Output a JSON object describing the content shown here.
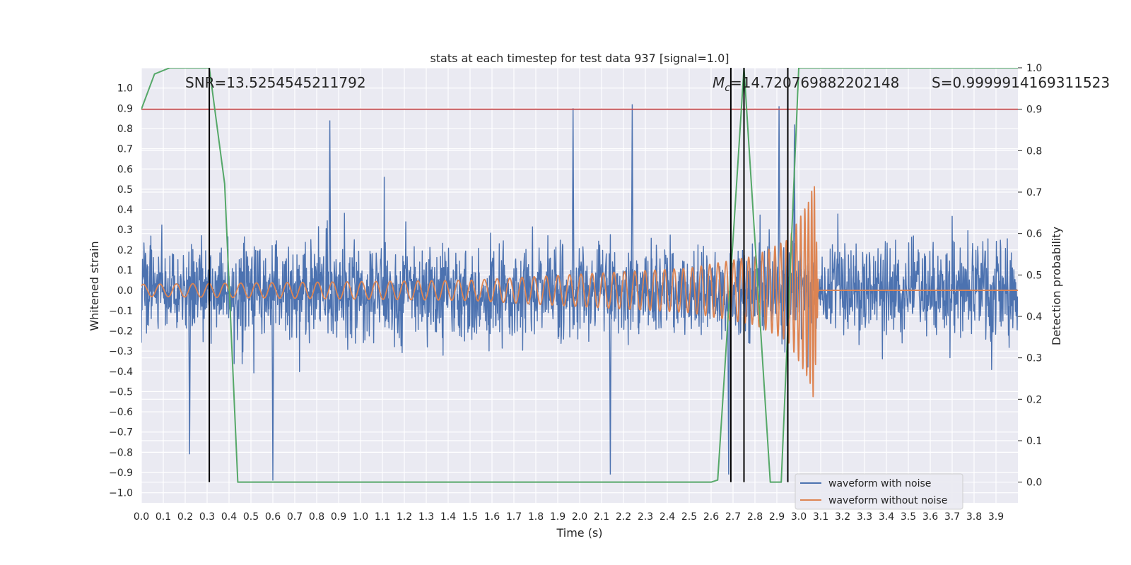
{
  "chart_data": {
    "type": "line",
    "title": "stats at each timestep for test data 937 [signal=1.0]",
    "xlabel": "Time (s)",
    "ylabel": "Whitened strain",
    "y2label": "Detection probability",
    "xlim": [
      0.0,
      4.0
    ],
    "ylim": [
      -1.05,
      1.1
    ],
    "y2lim": [
      -0.05,
      1.0
    ],
    "x_ticks": [
      "0.0",
      "0.1",
      "0.2",
      "0.3",
      "0.4",
      "0.5",
      "0.6",
      "0.7",
      "0.8",
      "0.9",
      "1.0",
      "1.1",
      "1.2",
      "1.3",
      "1.4",
      "1.5",
      "1.6",
      "1.7",
      "1.8",
      "1.9",
      "2.0",
      "2.1",
      "2.2",
      "2.3",
      "2.4",
      "2.5",
      "2.6",
      "2.7",
      "2.8",
      "2.9",
      "3.0",
      "3.1",
      "3.2",
      "3.3",
      "3.4",
      "3.5",
      "3.6",
      "3.7",
      "3.8",
      "3.9"
    ],
    "y_ticks": [
      "1.0",
      "0.9",
      "0.8",
      "0.7",
      "0.6",
      "0.5",
      "0.4",
      "0.3",
      "0.2",
      "0.1",
      "0.0",
      "−0.1",
      "−0.2",
      "−0.3",
      "−0.4",
      "−0.5",
      "−0.6",
      "−0.7",
      "−0.8",
      "−0.9",
      "−1.0"
    ],
    "y2_ticks": [
      "1.0",
      "0.9",
      "0.8",
      "0.7",
      "0.6",
      "0.5",
      "0.4",
      "0.3",
      "0.2",
      "0.1",
      "0.0"
    ],
    "grid": true,
    "background": "#eaeaf2",
    "annotations": {
      "snr": "SNR=13.5254545211792",
      "mc_symbol": "M",
      "mc_sub": "c",
      "mc_value": "=14.720769882202148",
      "s": "S=0.9999914169311523"
    },
    "legend": {
      "placement": "lower-right",
      "entries": [
        "waveform with noise",
        "waveform without noise"
      ]
    },
    "series": [
      {
        "name": "waveform with noise",
        "color": "#4c72b0",
        "axis": "left",
        "description": "dense whitened noise, amplitude roughly ±0.4 with peaks to ±0.9",
        "envelope_peaks": [
          {
            "x": 0.86,
            "y": 0.84
          },
          {
            "x": 1.97,
            "y": 0.9
          },
          {
            "x": 2.24,
            "y": 0.92
          },
          {
            "x": 2.91,
            "y": 0.91
          },
          {
            "x": 2.98,
            "y": 0.82
          },
          {
            "x": 0.6,
            "y": -0.94
          },
          {
            "x": 2.14,
            "y": -0.91
          },
          {
            "x": 0.22,
            "y": -0.81
          },
          {
            "x": 2.68,
            "y": -0.91
          }
        ]
      },
      {
        "name": "waveform without noise",
        "color": "#dd8452",
        "axis": "left",
        "description": "chirp signal growing in amplitude and frequency, merging near 3.07 s",
        "amplitude_points": [
          [
            0.0,
            0.03
          ],
          [
            1.5,
            0.05
          ],
          [
            2.0,
            0.08
          ],
          [
            2.5,
            0.11
          ],
          [
            2.8,
            0.17
          ],
          [
            2.95,
            0.25
          ],
          [
            3.05,
            0.45
          ],
          [
            3.07,
            0.55
          ]
        ],
        "end_time": 3.09
      },
      {
        "name": "detection probability",
        "color": "#55a868",
        "axis": "right",
        "points": [
          [
            0.0,
            0.9
          ],
          [
            0.06,
            0.985
          ],
          [
            0.13,
            1.0
          ],
          [
            0.31,
            1.0
          ],
          [
            0.38,
            0.72
          ],
          [
            0.44,
            0.0
          ],
          [
            2.6,
            0.0
          ],
          [
            2.63,
            0.005
          ],
          [
            2.75,
            1.0
          ],
          [
            2.87,
            0.0
          ],
          [
            2.92,
            0.0
          ],
          [
            3.0,
            1.0
          ],
          [
            4.0,
            1.0
          ]
        ]
      },
      {
        "name": "threshold",
        "color": "#c44e52",
        "axis": "right",
        "points": [
          [
            0.0,
            0.9
          ],
          [
            4.0,
            0.9
          ]
        ]
      }
    ],
    "vertical_markers": {
      "color": "#000000",
      "x": [
        0.31,
        2.69,
        2.75,
        2.95
      ],
      "y2_range": [
        0.0,
        1.0
      ]
    }
  }
}
